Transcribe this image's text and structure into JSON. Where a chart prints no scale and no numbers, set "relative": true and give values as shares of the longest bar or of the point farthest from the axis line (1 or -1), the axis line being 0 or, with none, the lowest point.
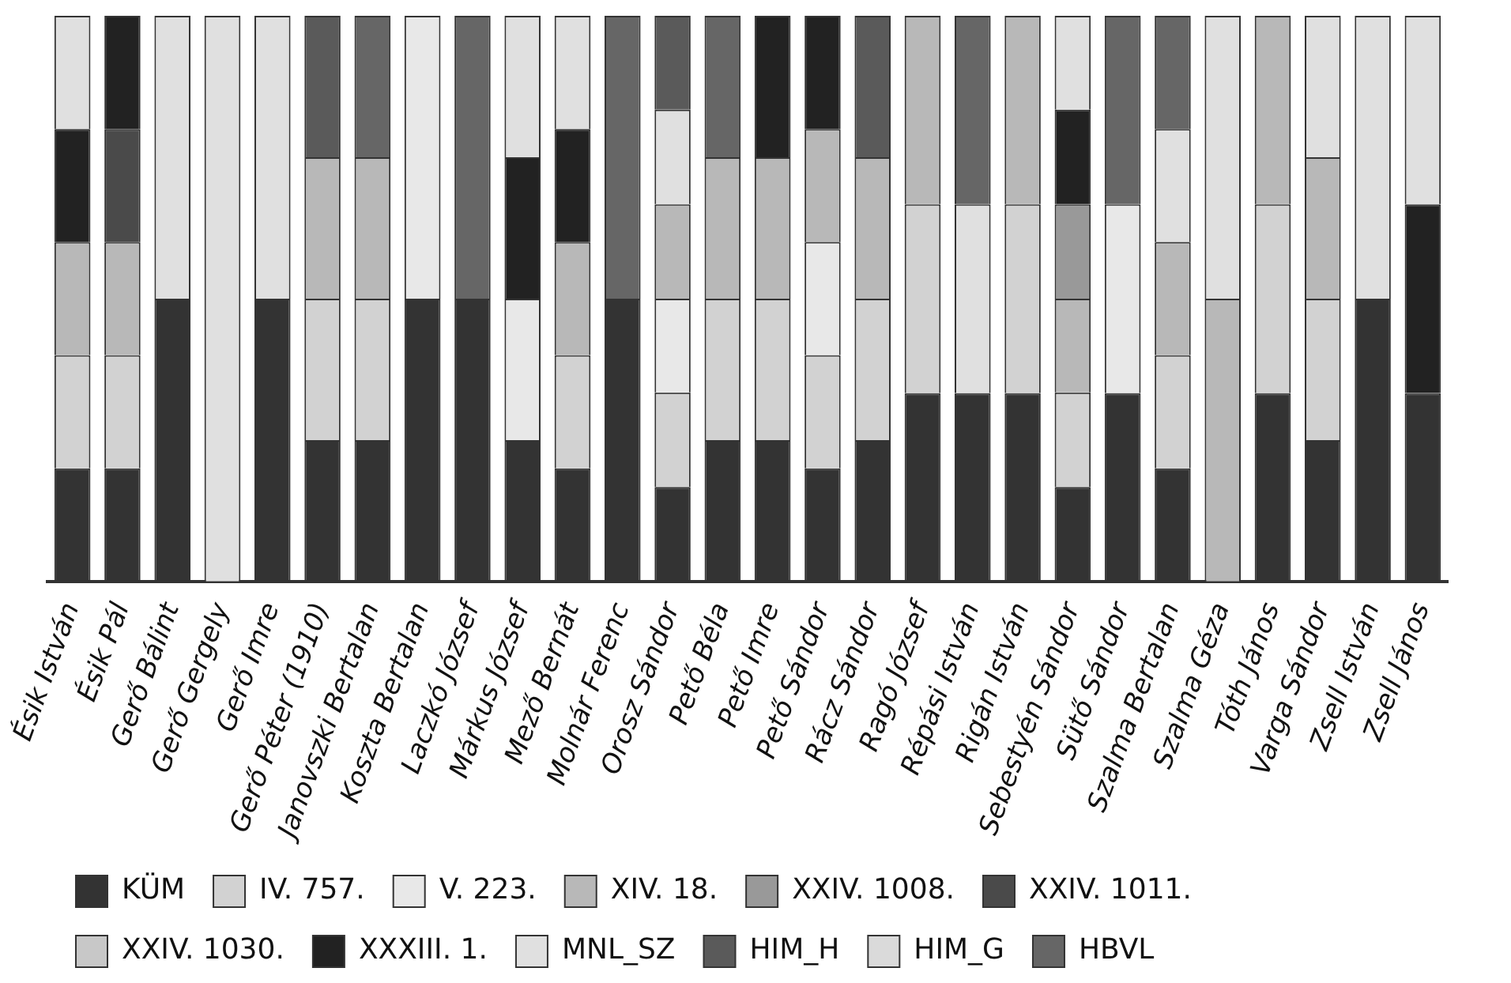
{
  "chart_data": {
    "type": "bar",
    "stacked": true,
    "relative": true,
    "legend": "bottom",
    "categories": [
      "Ésik István",
      "Ésik Pál",
      "Gerő Bálint",
      "Gerő Gergely",
      "Gerő Imre",
      "Gerő Péter (1910)",
      "Janovszki Bertalan",
      "Koszta Bertalan",
      "Laczkó József",
      "Márkus József",
      "Mező Bernát",
      "Molnár Ferenc",
      "Orosz Sándor",
      "Pető Béla",
      "Pető Imre",
      "Pető Sándor",
      "Rácz Sándor",
      "Ragó József",
      "Répási István",
      "Rigán István",
      "Sebestyén Sándor",
      "Sütő Sándor",
      "Szalma Bertalan",
      "Szalma Géza",
      "Tóth János",
      "Varga Sándor",
      "Zsell István",
      "Zsell János"
    ],
    "series": [
      {
        "name": "KÜM",
        "color": "#333333",
        "values": [
          0.2,
          0.2,
          0.5,
          null,
          0.5,
          0.25,
          0.25,
          0.5,
          0.5,
          0.25,
          0.2,
          0.5,
          0.167,
          0.25,
          0.25,
          0.2,
          0.25,
          0.333,
          0.333,
          0.333,
          0.167,
          0.333,
          0.2,
          null,
          0.333,
          0.25,
          0.5,
          0.333
        ]
      },
      {
        "name": "IV. 757.",
        "color": "#d2d2d2",
        "values": [
          0.2,
          0.2,
          null,
          null,
          null,
          0.25,
          0.25,
          null,
          null,
          null,
          0.2,
          null,
          0.167,
          0.25,
          0.25,
          0.2,
          0.25,
          0.334,
          null,
          0.334,
          0.167,
          null,
          0.2,
          null,
          0.334,
          0.25,
          null,
          null
        ]
      },
      {
        "name": "V. 223.",
        "color": "#e8e8e8",
        "values": [
          null,
          null,
          null,
          null,
          null,
          null,
          null,
          0.5,
          null,
          0.25,
          null,
          null,
          0.166,
          null,
          null,
          0.2,
          null,
          null,
          null,
          null,
          null,
          0.334,
          null,
          null,
          null,
          null,
          null,
          null
        ]
      },
      {
        "name": "XIV. 18.",
        "color": "#b8b8b8",
        "values": [
          0.2,
          0.2,
          null,
          null,
          null,
          0.25,
          0.25,
          null,
          null,
          null,
          0.2,
          null,
          0.167,
          0.25,
          0.25,
          0.2,
          0.25,
          0.333,
          null,
          0.333,
          0.166,
          null,
          0.2,
          0.5,
          0.333,
          0.25,
          null,
          null
        ]
      },
      {
        "name": "XXIV. 1008.",
        "color": "#999999",
        "values": [
          null,
          null,
          null,
          null,
          null,
          null,
          null,
          null,
          null,
          null,
          null,
          null,
          null,
          null,
          null,
          null,
          null,
          null,
          null,
          null,
          0.167,
          null,
          null,
          null,
          null,
          null,
          null,
          null
        ]
      },
      {
        "name": "XXIV. 1011.",
        "color": "#4a4a4a",
        "values": [
          null,
          0.2,
          null,
          null,
          null,
          null,
          null,
          null,
          null,
          null,
          null,
          null,
          null,
          null,
          null,
          null,
          null,
          null,
          null,
          null,
          null,
          null,
          null,
          null,
          null,
          null,
          null,
          null
        ]
      },
      {
        "name": "XXIV. 1030.",
        "color": "#c8c8c8",
        "values": [
          null,
          null,
          null,
          null,
          null,
          null,
          null,
          null,
          null,
          null,
          null,
          null,
          null,
          null,
          null,
          null,
          null,
          null,
          null,
          null,
          null,
          null,
          null,
          null,
          null,
          null,
          null,
          null
        ]
      },
      {
        "name": "XXXIII. 1.",
        "color": "#222222",
        "values": [
          0.2,
          0.2,
          null,
          null,
          null,
          null,
          null,
          null,
          null,
          0.25,
          0.2,
          null,
          null,
          null,
          0.25,
          0.2,
          null,
          null,
          null,
          null,
          0.167,
          null,
          null,
          null,
          null,
          null,
          null,
          0.334
        ]
      },
      {
        "name": "MNL_SZ",
        "color": "#e0e0e0",
        "values": [
          0.2,
          null,
          0.5,
          1,
          0.5,
          null,
          null,
          null,
          null,
          0.25,
          0.2,
          null,
          0.167,
          null,
          null,
          null,
          null,
          null,
          0.334,
          null,
          0.166,
          null,
          0.2,
          0.5,
          null,
          0.25,
          0.5,
          0.333
        ]
      },
      {
        "name": "HIM_H",
        "color": "#5a5a5a",
        "values": [
          null,
          null,
          null,
          null,
          null,
          0.25,
          null,
          null,
          null,
          null,
          null,
          null,
          0.166,
          null,
          null,
          null,
          0.25,
          null,
          null,
          null,
          null,
          null,
          null,
          null,
          null,
          null,
          null,
          null
        ]
      },
      {
        "name": "HIM_G",
        "color": "#dadada",
        "values": [
          null,
          null,
          null,
          null,
          null,
          null,
          null,
          null,
          null,
          null,
          null,
          null,
          null,
          null,
          null,
          null,
          null,
          null,
          null,
          null,
          null,
          null,
          null,
          null,
          null,
          null,
          null,
          null
        ]
      },
      {
        "name": "HBVL",
        "color": "#666666",
        "values": [
          null,
          null,
          null,
          null,
          null,
          null,
          0.25,
          null,
          0.5,
          null,
          null,
          0.5,
          null,
          0.25,
          null,
          null,
          null,
          null,
          0.333,
          null,
          null,
          0.333,
          0.2,
          null,
          null,
          null,
          null,
          null
        ]
      }
    ]
  }
}
